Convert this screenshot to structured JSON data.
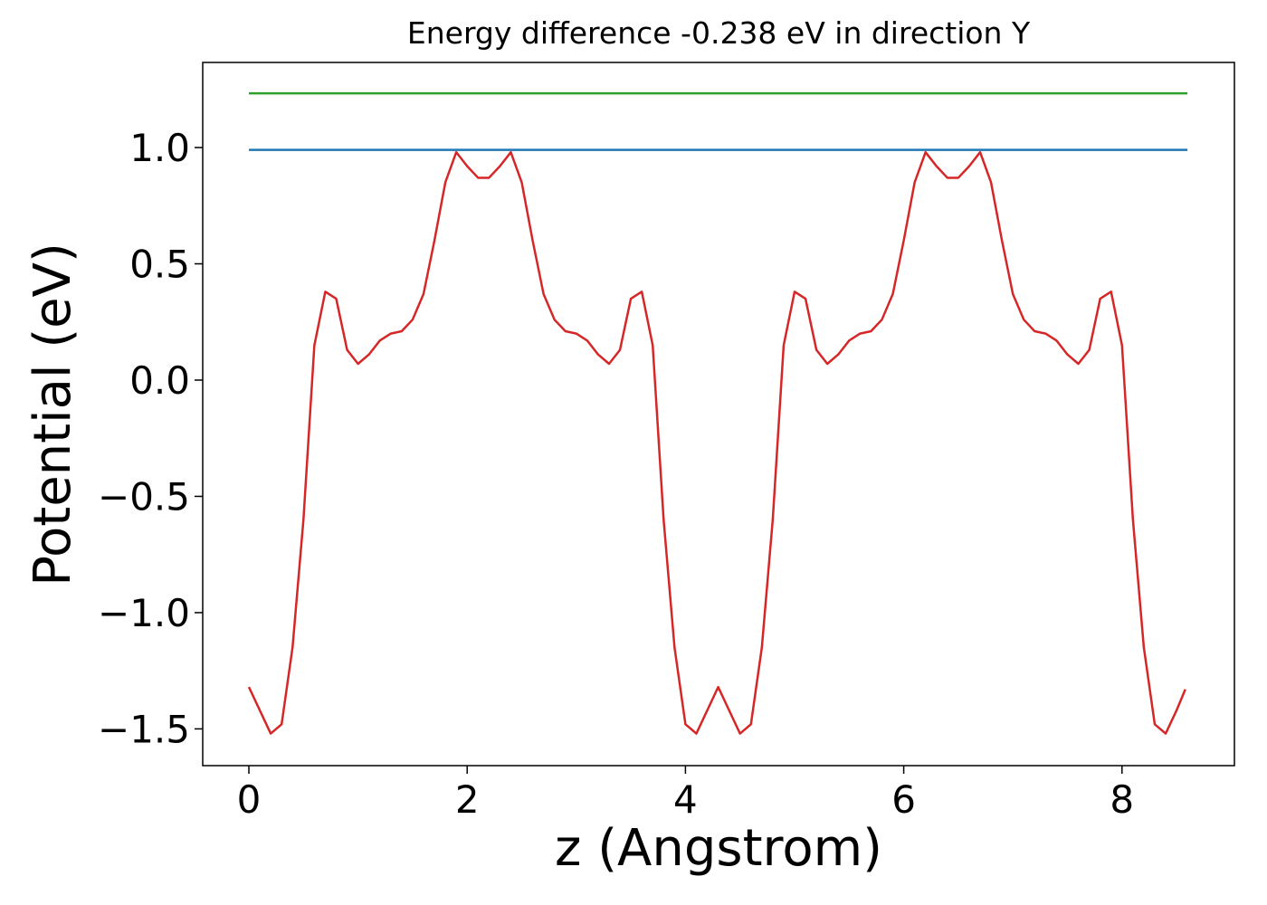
{
  "chart_data": {
    "type": "line",
    "title": "Energy difference -0.238 eV in direction Y",
    "xlabel": "z (Angstrom)",
    "ylabel": "Potential (eV)",
    "xlim": [
      -0.423,
      9.03
    ],
    "ylim": [
      -1.658,
      1.366
    ],
    "xticks": [
      0,
      2,
      4,
      6,
      8
    ],
    "yticks": [
      {
        "value": -1.5,
        "label": "−1.5"
      },
      {
        "value": -1.0,
        "label": "−1.0"
      },
      {
        "value": -0.5,
        "label": "−0.5"
      },
      {
        "value": 0.0,
        "label": "0.0"
      },
      {
        "value": 0.5,
        "label": "0.5"
      },
      {
        "value": 1.0,
        "label": "1.0"
      }
    ],
    "series": [
      {
        "color": "#d62728",
        "x": [
          0.0,
          0.1,
          0.2,
          0.3,
          0.4,
          0.5,
          0.6,
          0.7,
          0.8,
          0.9,
          1.0,
          1.1,
          1.2,
          1.3,
          1.4,
          1.5,
          1.6,
          1.7,
          1.8,
          1.9,
          2.0,
          2.1,
          2.2,
          2.3,
          2.4,
          2.5,
          2.6,
          2.7,
          2.8,
          2.9,
          3.0,
          3.1,
          3.2,
          3.3,
          3.4,
          3.5,
          3.6,
          3.7,
          3.8,
          3.9,
          4.0,
          4.1,
          4.2,
          4.3,
          4.4,
          4.5,
          4.6,
          4.7,
          4.8,
          4.9,
          5.0,
          5.1,
          5.2,
          5.3,
          5.4,
          5.5,
          5.6,
          5.7,
          5.8,
          5.9,
          6.0,
          6.1,
          6.2,
          6.3,
          6.4,
          6.5,
          6.6,
          6.7,
          6.8,
          6.9,
          7.0,
          7.1,
          7.2,
          7.3,
          7.4,
          7.5,
          7.6,
          7.7,
          7.8,
          7.9,
          8.0,
          8.1,
          8.2,
          8.3,
          8.4,
          8.5,
          8.58
        ],
        "values": [
          -1.32,
          -1.42,
          -1.52,
          -1.48,
          -1.15,
          -0.6,
          0.15,
          0.38,
          0.35,
          0.13,
          0.07,
          0.11,
          0.17,
          0.2,
          0.21,
          0.26,
          0.37,
          0.6,
          0.85,
          0.98,
          0.92,
          0.87,
          0.87,
          0.92,
          0.98,
          0.85,
          0.6,
          0.37,
          0.26,
          0.21,
          0.2,
          0.17,
          0.11,
          0.07,
          0.13,
          0.35,
          0.38,
          0.15,
          -0.6,
          -1.15,
          -1.48,
          -1.52,
          -1.42,
          -1.32,
          -1.42,
          -1.52,
          -1.48,
          -1.15,
          -0.6,
          0.15,
          0.38,
          0.35,
          0.13,
          0.07,
          0.11,
          0.17,
          0.2,
          0.21,
          0.26,
          0.37,
          0.6,
          0.85,
          0.98,
          0.92,
          0.87,
          0.87,
          0.92,
          0.98,
          0.85,
          0.6,
          0.37,
          0.26,
          0.21,
          0.2,
          0.17,
          0.11,
          0.07,
          0.13,
          0.35,
          0.38,
          0.15,
          -0.6,
          -1.15,
          -1.48,
          -1.52,
          -1.42,
          -1.33
        ]
      },
      {
        "color": "#1f77b4",
        "x": [
          0.0,
          8.6
        ],
        "values": [
          0.99,
          0.99
        ]
      },
      {
        "color": "#2ca02c",
        "x": [
          0.0,
          8.6
        ],
        "values": [
          1.233,
          1.233
        ]
      }
    ]
  }
}
